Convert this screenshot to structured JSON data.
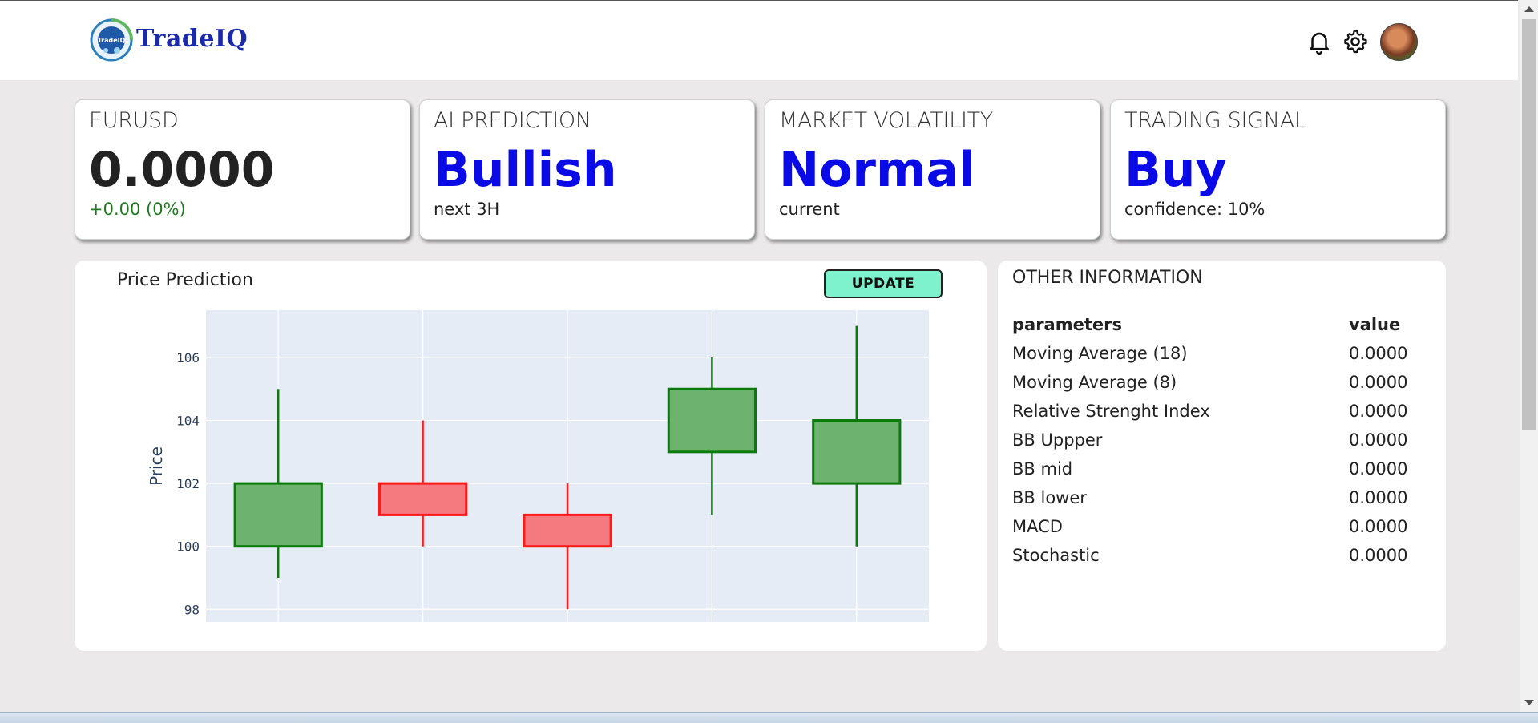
{
  "brand": {
    "name": "TradeIQ",
    "logo_mark_text": "TradeIQ"
  },
  "header_icons": {
    "notifications": "bell-icon",
    "settings": "gear-icon",
    "avatar": "user-avatar"
  },
  "cards": [
    {
      "label": "EURUSD",
      "value": "0.0000",
      "sub": "+0.00 (0%)",
      "value_color": "#222222",
      "sub_color": "#1f7a1f"
    },
    {
      "label": "AI PREDICTION",
      "value": "Bullish",
      "sub": "next 3H",
      "value_color": "#0a0ae6",
      "sub_color": "#222222"
    },
    {
      "label": "MARKET VOLATILITY",
      "value": "Normal",
      "sub": "current",
      "value_color": "#0a0ae6",
      "sub_color": "#222222"
    },
    {
      "label": "TRADING SIGNAL",
      "value": "Buy",
      "sub": "confidence: 10%",
      "value_color": "#0a0ae6",
      "sub_color": "#222222"
    }
  ],
  "chart_panel": {
    "title": "Price Prediction",
    "update_label": "UPDATE"
  },
  "chart_data": {
    "type": "candlestick",
    "ylabel": "Price",
    "ylim": [
      97.6,
      107.5
    ],
    "yticks": [
      98,
      100,
      102,
      104,
      106
    ],
    "grid": true,
    "candles": [
      {
        "open": 100,
        "high": 105,
        "low": 99,
        "close": 102
      },
      {
        "open": 102,
        "high": 104,
        "low": 100,
        "close": 101
      },
      {
        "open": 101,
        "high": 102,
        "low": 98,
        "close": 100
      },
      {
        "open": 103,
        "high": 106,
        "low": 101,
        "close": 105
      },
      {
        "open": 102,
        "high": 107,
        "low": 100,
        "close": 104
      }
    ],
    "colors": {
      "up": "#0b7a0b",
      "up_fill": "#6db36d",
      "down": "#ff1a1a",
      "down_fill": "#f47a80",
      "plot_bg": "#e5ecf6",
      "grid": "#ffffff"
    }
  },
  "info_panel": {
    "title": "OTHER INFORMATION",
    "headers": [
      "parameters",
      "value"
    ],
    "rows": [
      [
        "Moving Average (18)",
        "0.0000"
      ],
      [
        "Moving Average (8)",
        "0.0000"
      ],
      [
        "Relative Strenght Index",
        "0.0000"
      ],
      [
        "BB Uppper",
        "0.0000"
      ],
      [
        "BB mid",
        "0.0000"
      ],
      [
        "BB lower",
        "0.0000"
      ],
      [
        "MACD",
        "0.0000"
      ],
      [
        "Stochastic",
        "0.0000"
      ]
    ]
  }
}
